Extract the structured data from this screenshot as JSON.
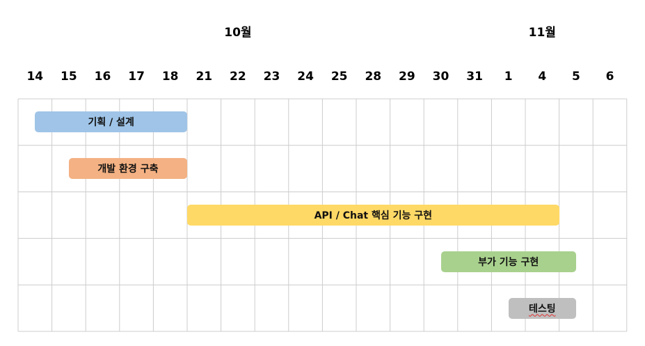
{
  "chart_data": {
    "type": "gantt",
    "months": [
      {
        "label": "10월",
        "index": 6
      },
      {
        "label": "11월",
        "index": 15
      }
    ],
    "days": [
      "14",
      "15",
      "16",
      "17",
      "18",
      "21",
      "22",
      "23",
      "24",
      "25",
      "28",
      "29",
      "30",
      "31",
      "1",
      "4",
      "5",
      "6"
    ],
    "tasks": [
      {
        "name": "기획 / 설계",
        "start": 0.5,
        "end": 5.0,
        "color": "#9fc4e7",
        "spell": false
      },
      {
        "name": "개발 환경 구축",
        "start": 1.5,
        "end": 5.0,
        "color": "#f4b183",
        "spell": false
      },
      {
        "name": "API / Chat 핵심 기능 구현",
        "start": 5.0,
        "end": 16.0,
        "color": "#ffd966",
        "spell": false
      },
      {
        "name": "부가 기능 구현",
        "start": 12.5,
        "end": 16.5,
        "color": "#a9d18e",
        "spell": false
      },
      {
        "name": "테스팅",
        "start": 14.5,
        "end": 16.5,
        "color": "#bfbfbf",
        "spell": true
      }
    ],
    "rows": 5,
    "grid": true
  }
}
